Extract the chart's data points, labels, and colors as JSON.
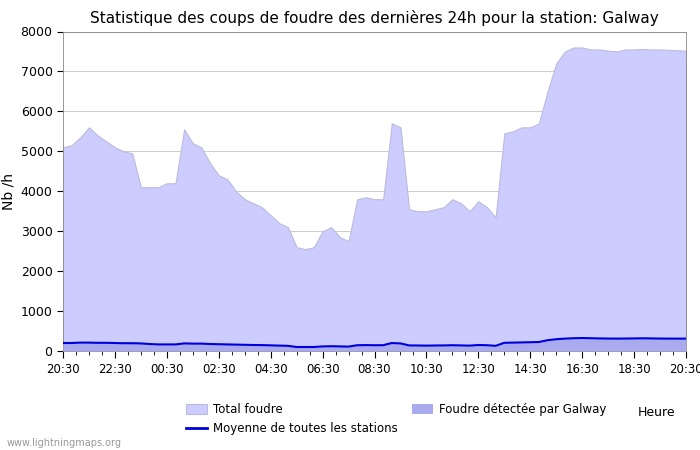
{
  "title": "Statistique des coups de foudre des dernières 24h pour la station: Galway",
  "ylabel": "Nb /h",
  "xlabel": "Heure",
  "watermark": "www.lightningmaps.org",
  "ylim": [
    0,
    8000
  ],
  "yticks": [
    0,
    1000,
    2000,
    3000,
    4000,
    5000,
    6000,
    7000,
    8000
  ],
  "xtick_labels": [
    "20:30",
    "22:30",
    "00:30",
    "02:30",
    "04:30",
    "06:30",
    "08:30",
    "10:30",
    "12:30",
    "14:30",
    "16:30",
    "18:30",
    "20:30"
  ],
  "total_foudre_color": "#ccccff",
  "galway_color": "#aaaaee",
  "moyenne_color": "#0000dd",
  "background_color": "#ffffff",
  "legend_total": "Total foudre",
  "legend_moyenne": "Moyenne de toutes les stations",
  "legend_galway": "Foudre détectée par Galway",
  "total_foudre": [
    5100,
    5150,
    5350,
    5600,
    5400,
    5250,
    5100,
    5000,
    4950,
    4100,
    4100,
    4100,
    4200,
    4200,
    5550,
    5200,
    5100,
    4700,
    4400,
    4300,
    4000,
    3800,
    3700,
    3600,
    3400,
    3200,
    3100,
    2600,
    2550,
    2600,
    3000,
    3100,
    2850,
    2750,
    3800,
    3850,
    3800,
    3800,
    5700,
    5600,
    3550,
    3500,
    3500,
    3550,
    3600,
    3800,
    3700,
    3500,
    3750,
    3600,
    3350,
    5450,
    5500,
    5600,
    5600,
    5700,
    6500,
    7200,
    7500,
    7600,
    7600,
    7550,
    7550,
    7520,
    7500,
    7550,
    7550,
    7560,
    7550,
    7550,
    7540,
    7530,
    7520
  ],
  "galway_foudre": [
    200,
    200,
    210,
    210,
    205,
    205,
    200,
    195,
    195,
    190,
    175,
    165,
    165,
    165,
    190,
    185,
    185,
    175,
    170,
    165,
    160,
    155,
    150,
    148,
    142,
    135,
    130,
    100,
    100,
    100,
    115,
    120,
    115,
    110,
    145,
    148,
    145,
    145,
    200,
    190,
    140,
    138,
    135,
    138,
    140,
    145,
    140,
    135,
    150,
    145,
    130,
    205,
    210,
    215,
    220,
    225,
    270,
    295,
    310,
    320,
    325,
    320,
    315,
    312,
    310,
    312,
    315,
    318,
    315,
    312,
    310,
    310,
    310
  ],
  "moyenne_line": [
    200,
    200,
    210,
    210,
    205,
    205,
    200,
    195,
    195,
    190,
    175,
    165,
    165,
    165,
    190,
    185,
    185,
    175,
    170,
    165,
    160,
    155,
    150,
    148,
    142,
    135,
    130,
    100,
    100,
    100,
    115,
    120,
    115,
    110,
    145,
    148,
    145,
    145,
    200,
    190,
    140,
    138,
    135,
    138,
    140,
    145,
    140,
    135,
    150,
    145,
    130,
    205,
    210,
    215,
    220,
    225,
    270,
    295,
    310,
    320,
    325,
    320,
    315,
    312,
    310,
    312,
    315,
    318,
    315,
    312,
    310,
    310,
    310
  ]
}
